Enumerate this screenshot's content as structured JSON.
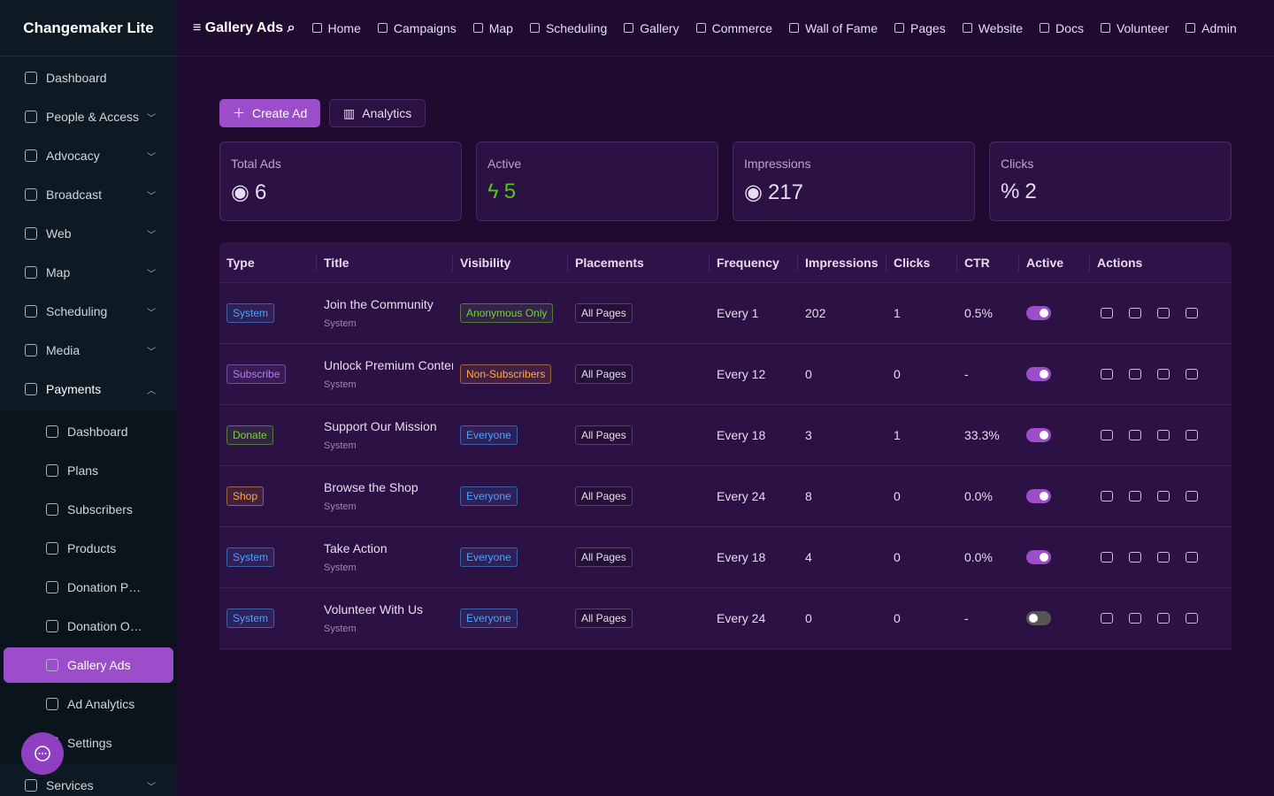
{
  "sidebar": {
    "brand": "Changemaker Lite",
    "items": [
      {
        "label": "Dashboard",
        "caret": false
      },
      {
        "label": "People & Access",
        "caret": true
      },
      {
        "label": "Advocacy",
        "caret": true
      },
      {
        "label": "Broadcast",
        "caret": true
      },
      {
        "label": "Web",
        "caret": true
      },
      {
        "label": "Map",
        "caret": true
      },
      {
        "label": "Scheduling",
        "caret": true
      },
      {
        "label": "Media",
        "caret": true
      },
      {
        "label": "Payments",
        "caret": true,
        "open": true
      }
    ],
    "sub_items": [
      {
        "label": "Dashboard"
      },
      {
        "label": "Plans"
      },
      {
        "label": "Subscribers"
      },
      {
        "label": "Products"
      },
      {
        "label": "Donation P…"
      },
      {
        "label": "Donation O…"
      },
      {
        "label": "Gallery Ads",
        "active": true
      },
      {
        "label": "Ad Analytics"
      },
      {
        "label": "Settings"
      }
    ],
    "bottom": "Services"
  },
  "topnav": {
    "title": "Gallery Ads",
    "links": [
      "Home",
      "Campaigns",
      "Map",
      "Scheduling",
      "Gallery",
      "Commerce",
      "Wall of Fame",
      "Pages",
      "Website",
      "Docs",
      "Volunteer",
      "Admin"
    ]
  },
  "toolbar": {
    "create": "Create Ad",
    "analytics": "Analytics"
  },
  "stats": [
    {
      "label": "Total Ads",
      "value": 6,
      "color": "#e6dcef"
    },
    {
      "label": "Active",
      "value": 5,
      "color": "#52c41a"
    },
    {
      "label": "Impressions",
      "value": 217,
      "color": "#e6dcef"
    },
    {
      "label": "Clicks",
      "value": 2,
      "color": "#e6dcef"
    }
  ],
  "table": {
    "headers": [
      "Type",
      "Title",
      "Visibility",
      "Placements",
      "Frequency",
      "Impressions",
      "Clicks",
      "CTR",
      "Active",
      "Actions"
    ],
    "rows": [
      {
        "type": "System",
        "type_color": "#4da3ff",
        "title": "Join the Community",
        "source": "System",
        "visibility": "Anonymous Only",
        "visibility_color": "#73d13d",
        "placements": "All Pages",
        "frequency": "Every 1",
        "impressions": 202,
        "clicks": 1,
        "ctr": "0.5%",
        "active": true
      },
      {
        "type": "Subscribe",
        "type_color": "#b37feb",
        "title": "Unlock Premium Content",
        "source": "System",
        "visibility": "Non-Subscribers",
        "visibility_color": "#ffa940",
        "placements": "All Pages",
        "frequency": "Every 12",
        "impressions": 0,
        "clicks": 0,
        "ctr": "-",
        "active": true
      },
      {
        "type": "Donate",
        "type_color": "#73d13d",
        "title": "Support Our Mission",
        "source": "System",
        "visibility": "Everyone",
        "visibility_color": "#4da3ff",
        "placements": "All Pages",
        "frequency": "Every 18",
        "impressions": 3,
        "clicks": 1,
        "ctr": "33.3%",
        "active": true
      },
      {
        "type": "Shop",
        "type_color": "#ffa940",
        "title": "Browse the Shop",
        "source": "System",
        "visibility": "Everyone",
        "visibility_color": "#4da3ff",
        "placements": "All Pages",
        "frequency": "Every 24",
        "impressions": 8,
        "clicks": 0,
        "ctr": "0.0%",
        "active": true
      },
      {
        "type": "System",
        "type_color": "#4da3ff",
        "title": "Take Action",
        "source": "System",
        "visibility": "Everyone",
        "visibility_color": "#4da3ff",
        "placements": "All Pages",
        "frequency": "Every 18",
        "impressions": 4,
        "clicks": 0,
        "ctr": "0.0%",
        "active": true
      },
      {
        "type": "System",
        "type_color": "#4da3ff",
        "title": "Volunteer With Us",
        "source": "System",
        "visibility": "Everyone",
        "visibility_color": "#4da3ff",
        "placements": "All Pages",
        "frequency": "Every 24",
        "impressions": 0,
        "clicks": 0,
        "ctr": "-",
        "active": false
      }
    ]
  }
}
